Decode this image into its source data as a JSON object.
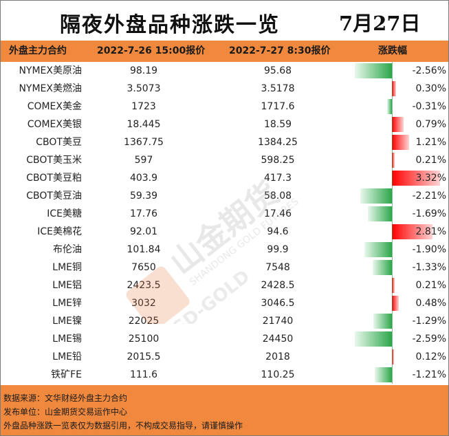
{
  "title": "隔夜外盘品种涨跌一览",
  "date": "7月27日",
  "headers": {
    "name": "外盘主力合约",
    "price1": "2022-7-26 15:00报价",
    "price2": "2022-7-27 8:30报价",
    "change": "涨跌幅"
  },
  "rows": [
    {
      "name": "NYMEX美原油",
      "p1": "98.19",
      "p2": "95.68",
      "pct": "-2.56%",
      "change": -2.56
    },
    {
      "name": "NYMEX美燃油",
      "p1": "3.5073",
      "p2": "3.5178",
      "pct": "0.30%",
      "change": 0.3
    },
    {
      "name": "COMEX美金",
      "p1": "1723",
      "p2": "1717.6",
      "pct": "-0.31%",
      "change": -0.31
    },
    {
      "name": "COMEX美银",
      "p1": "18.445",
      "p2": "18.59",
      "pct": "0.79%",
      "change": 0.79
    },
    {
      "name": "CBOT美豆",
      "p1": "1367.75",
      "p2": "1384.25",
      "pct": "1.21%",
      "change": 1.21
    },
    {
      "name": "CBOT美玉米",
      "p1": "597",
      "p2": "598.25",
      "pct": "0.21%",
      "change": 0.21
    },
    {
      "name": "CBOT美豆粕",
      "p1": "403.9",
      "p2": "417.3",
      "pct": "3.32%",
      "change": 3.32
    },
    {
      "name": "CBOT美豆油",
      "p1": "59.39",
      "p2": "58.08",
      "pct": "-2.21%",
      "change": -2.21
    },
    {
      "name": "ICE美糖",
      "p1": "17.76",
      "p2": "17.46",
      "pct": "-1.69%",
      "change": -1.69
    },
    {
      "name": "ICE美棉花",
      "p1": "92.01",
      "p2": "94.6",
      "pct": "2.81%",
      "change": 2.81
    },
    {
      "name": "布伦油",
      "p1": "101.84",
      "p2": "99.9",
      "pct": "-1.90%",
      "change": -1.9
    },
    {
      "name": "LME铜",
      "p1": "7650",
      "p2": "7548",
      "pct": "-1.33%",
      "change": -1.33
    },
    {
      "name": "LME铝",
      "p1": "2423.5",
      "p2": "2428.5",
      "pct": "0.21%",
      "change": 0.21
    },
    {
      "name": "LME锌",
      "p1": "3032",
      "p2": "3046.5",
      "pct": "0.48%",
      "change": 0.48
    },
    {
      "name": "LME镍",
      "p1": "22025",
      "p2": "21740",
      "pct": "-1.29%",
      "change": -1.29
    },
    {
      "name": "LME锡",
      "p1": "25100",
      "p2": "24450",
      "pct": "-2.59%",
      "change": -2.59
    },
    {
      "name": "LME铅",
      "p1": "2015.5",
      "p2": "2018",
      "pct": "0.12%",
      "change": 0.12
    },
    {
      "name": "铁矿FE",
      "p1": "111.6",
      "p2": "110.25",
      "pct": "-1.21%",
      "change": -1.21
    }
  ],
  "footer": {
    "line1": "数据来源：文华财经外盘主力合约",
    "line2": "发布单位：山金期货交易运作中心",
    "line3": "外盘品种涨跌一览表仅为数据引用，不构成交易指导，请谨慎操作"
  },
  "watermark": {
    "text_cn": "山金期货",
    "text_en1": "SHANDONG GOLD FUTURES",
    "text_en2": "SD-GOLD"
  },
  "colors": {
    "accent": "#f0883e",
    "positive": "#ff0000",
    "negative": "#2ca64a"
  }
}
